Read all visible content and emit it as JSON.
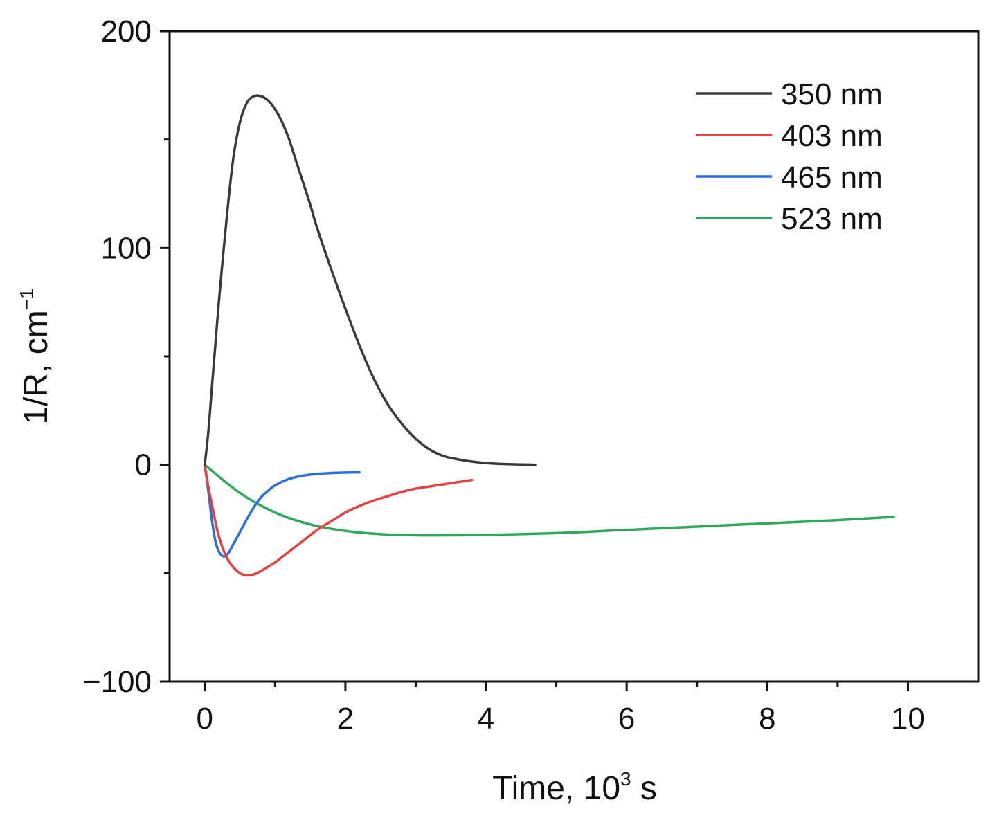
{
  "chart_data": {
    "type": "line",
    "title": "",
    "xlabel": {
      "base": "Time, 10",
      "sup": "3",
      "rest": " s"
    },
    "ylabel": {
      "base": "1/R, cm",
      "sup": "−1"
    },
    "xlim": [
      -0.5,
      11
    ],
    "ylim": [
      -100,
      200
    ],
    "xticks": [
      0,
      2,
      4,
      6,
      8,
      10
    ],
    "xtick_labels": [
      "0",
      "2",
      "4",
      "6",
      "8",
      "10"
    ],
    "xminor": [
      1,
      3,
      5,
      7,
      9
    ],
    "yticks": [
      -100,
      0,
      100,
      200
    ],
    "ytick_labels": [
      "−100",
      "0",
      "100",
      "200"
    ],
    "yminor": [
      -50,
      50,
      150
    ],
    "grid": false,
    "legend_position": "top-right",
    "series": [
      {
        "name": "350 nm",
        "color": "#3a3a3a",
        "x": [
          0,
          0.05,
          0.1,
          0.15,
          0.2,
          0.3,
          0.4,
          0.5,
          0.6,
          0.7,
          0.8,
          0.9,
          1.0,
          1.1,
          1.2,
          1.3,
          1.4,
          1.5,
          1.6,
          1.8,
          2.0,
          2.2,
          2.4,
          2.6,
          2.8,
          3.0,
          3.2,
          3.4,
          3.6,
          3.8,
          4.0,
          4.2,
          4.4,
          4.6,
          4.7
        ],
        "y": [
          0,
          15,
          35,
          55,
          75,
          110,
          140,
          158,
          167,
          170,
          170,
          168,
          164,
          158,
          150,
          140,
          130,
          120,
          109,
          90,
          72,
          55,
          40,
          28,
          19,
          12,
          7,
          4,
          2.5,
          1.5,
          0.8,
          0.4,
          0.2,
          0.1,
          0
        ]
      },
      {
        "name": "403 nm",
        "color": "#e84040",
        "x": [
          0,
          0.05,
          0.1,
          0.15,
          0.2,
          0.3,
          0.4,
          0.5,
          0.6,
          0.7,
          0.8,
          0.9,
          1.0,
          1.2,
          1.4,
          1.6,
          1.8,
          2.0,
          2.2,
          2.4,
          2.6,
          2.8,
          3.0,
          3.2,
          3.4,
          3.6,
          3.8
        ],
        "y": [
          0,
          -10,
          -18,
          -26,
          -33,
          -42,
          -47,
          -50,
          -51,
          -50.5,
          -49,
          -47,
          -45,
          -40,
          -35,
          -30,
          -26,
          -22,
          -19,
          -16.5,
          -14.5,
          -12.5,
          -11,
          -10,
          -9,
          -8,
          -7
        ]
      },
      {
        "name": "465 nm",
        "color": "#2a6de0",
        "x": [
          0,
          0.05,
          0.1,
          0.15,
          0.2,
          0.25,
          0.3,
          0.35,
          0.4,
          0.5,
          0.6,
          0.7,
          0.8,
          0.9,
          1.0,
          1.2,
          1.4,
          1.6,
          1.8,
          2.0,
          2.2
        ],
        "y": [
          0,
          -12,
          -25,
          -35,
          -40,
          -42,
          -42,
          -40,
          -37,
          -31,
          -25,
          -19.5,
          -15,
          -12,
          -9.5,
          -6.5,
          -5,
          -4.2,
          -3.8,
          -3.6,
          -3.5
        ]
      },
      {
        "name": "523 nm",
        "color": "#2ea85a",
        "x": [
          0,
          0.5,
          1.0,
          1.5,
          2.0,
          2.5,
          3.0,
          3.5,
          4.0,
          5.0,
          6.0,
          7.0,
          8.0,
          9.0,
          9.8
        ],
        "y": [
          0,
          -13,
          -22,
          -27.5,
          -30.5,
          -32,
          -32.5,
          -32.5,
          -32.3,
          -31.5,
          -30,
          -28.5,
          -27,
          -25.5,
          -24
        ]
      }
    ]
  }
}
